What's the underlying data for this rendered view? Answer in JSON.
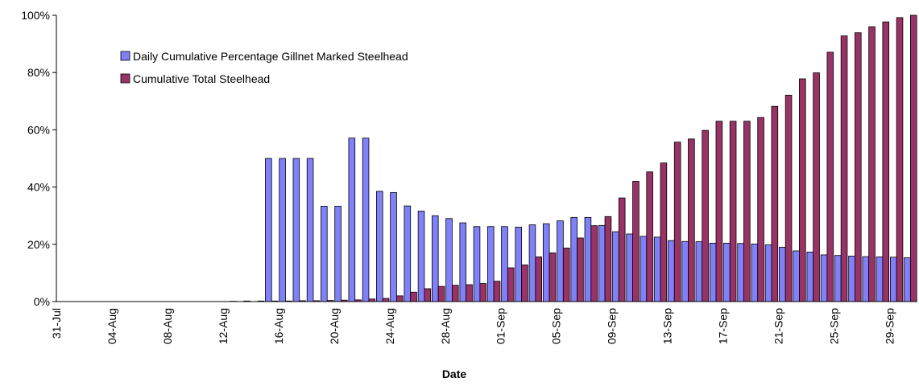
{
  "chart_data": {
    "type": "bar",
    "x_label": "Date",
    "categories": [
      "31-Jul",
      null,
      null,
      null,
      "04-Aug",
      null,
      null,
      null,
      "08-Aug",
      null,
      null,
      null,
      "12-Aug",
      null,
      null,
      null,
      "16-Aug",
      null,
      null,
      null,
      "20-Aug",
      null,
      null,
      null,
      "24-Aug",
      null,
      null,
      null,
      "28-Aug",
      null,
      null,
      null,
      "01-Sep",
      null,
      null,
      null,
      "05-Sep",
      null,
      null,
      null,
      "09-Sep",
      null,
      null,
      null,
      "13-Sep",
      null,
      null,
      null,
      "17-Sep",
      null,
      null,
      null,
      "21-Sep",
      null,
      null,
      null,
      "25-Sep",
      null,
      null,
      null,
      "29-Sep",
      null
    ],
    "series": [
      {
        "name": "Daily Cumulative Percentage Gillnet Marked Steelhead",
        "color": "#8080f8",
        "values": [
          null,
          null,
          null,
          null,
          null,
          null,
          null,
          null,
          null,
          null,
          null,
          null,
          null,
          null,
          null,
          50,
          50,
          50,
          50,
          33.3,
          33.3,
          57.1,
          57.1,
          38.5,
          38.1,
          33.4,
          31.6,
          30,
          29,
          27.5,
          26.2,
          26.2,
          26.2,
          26,
          26.8,
          27.2,
          28.2,
          29.4,
          29.4,
          26.6,
          24.4,
          23.6,
          22.8,
          22.5,
          21.3,
          21,
          20.9,
          20.4,
          20.4,
          20.3,
          20.1,
          19.8,
          19,
          17.7,
          17.3,
          16.3,
          16.1,
          15.9,
          15.7,
          15.6,
          15.5,
          15.3
        ]
      },
      {
        "name": "Cumulative Total Steelhead",
        "color": "#993366",
        "values": [
          null,
          null,
          null,
          null,
          null,
          null,
          null,
          null,
          null,
          null,
          null,
          null,
          0.1,
          0.2,
          0.2,
          0.2,
          0.2,
          0.3,
          0.3,
          0.4,
          0.5,
          0.6,
          0.9,
          1.1,
          2,
          3.3,
          4.5,
          5.3,
          5.7,
          5.9,
          6.3,
          7.1,
          11.8,
          12.8,
          15.6,
          17,
          18.7,
          22.2,
          26.5,
          29.7,
          36.2,
          42,
          45.3,
          48.4,
          55.7,
          56.8,
          59.8,
          63,
          63,
          63,
          64.3,
          68.2,
          72.1,
          77.8,
          79.9,
          87.1,
          92.8,
          93.9,
          96,
          97.7,
          99.2,
          100
        ]
      }
    ],
    "ylim": [
      0,
      100
    ],
    "yticks": [
      {
        "value": 0,
        "label": "0%"
      },
      {
        "value": 20,
        "label": "20%"
      },
      {
        "value": 40,
        "label": "40%"
      },
      {
        "value": 60,
        "label": "60%"
      },
      {
        "value": 80,
        "label": "80%"
      },
      {
        "value": 100,
        "label": "100%"
      }
    ],
    "legend": "top-left"
  }
}
